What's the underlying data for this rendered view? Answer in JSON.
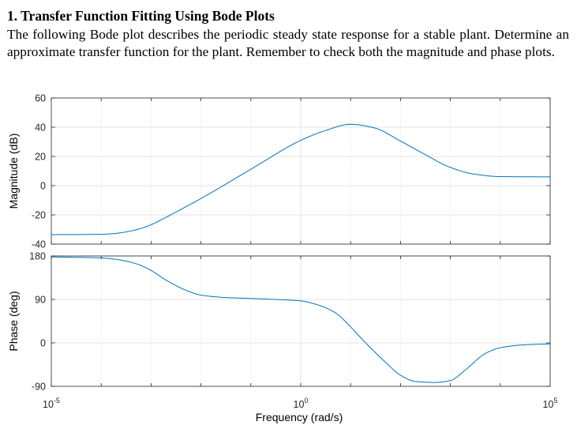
{
  "problem": {
    "heading": "1.  Transfer Function Fitting Using Bode Plots",
    "body": "The following Bode plot describes the periodic steady state response for a stable plant. Determine an approximate transfer function for the plant. Remember to check both the magnitude and phase plots."
  },
  "colors": {
    "line": "#0072BD",
    "axes": "#262626",
    "grid": "#e3e3e3",
    "tick_text": "#262626"
  },
  "chart_data": [
    {
      "type": "line",
      "title": "",
      "xlabel": "",
      "ylabel": "Magnitude (dB)",
      "xscale": "log",
      "xlim": [
        1e-05,
        100000
      ],
      "ylim": [
        -40,
        60
      ],
      "yticks": [
        "-40",
        "-20",
        "0",
        "20",
        "40",
        "60"
      ],
      "grid": true,
      "series": [
        {
          "x": [
            1e-05,
            0.0001,
            0.0002,
            0.0005,
            0.001,
            0.002,
            0.005,
            0.01,
            0.1,
            1,
            3,
            10,
            30,
            100,
            300,
            1000,
            3000,
            10000,
            100000
          ],
          "values": [
            -33.5,
            -33.3,
            -32.6,
            -30.2,
            -26.7,
            -21.6,
            -14.4,
            -8.8,
            11.2,
            31.0,
            37.5,
            42.0,
            39.5,
            30.5,
            21.6,
            12.5,
            7.9,
            6.2,
            6.0
          ]
        }
      ]
    },
    {
      "type": "line",
      "title": "",
      "xlabel": "Frequency  (rad/s)",
      "ylabel": "Phase (deg)",
      "xscale": "log",
      "xlim": [
        1e-05,
        100000
      ],
      "ylim": [
        -90,
        180
      ],
      "xticks": [
        {
          "base": "10",
          "exp": "-5"
        },
        {
          "base": "10",
          "exp": "0"
        },
        {
          "base": "10",
          "exp": "5"
        }
      ],
      "yticks": [
        "-90",
        "0",
        "90",
        "180"
      ],
      "grid": true,
      "series": [
        {
          "x": [
            1e-05,
            0.0001,
            0.0002,
            0.0005,
            0.001,
            0.002,
            0.005,
            0.01,
            0.03,
            0.1,
            0.3,
            1,
            2,
            5,
            10,
            20,
            50,
            100,
            200,
            500,
            1000,
            2000,
            5000,
            10000,
            30000,
            100000
          ],
          "values": [
            178,
            176,
            173,
            164,
            150,
            130,
            109,
            99,
            94,
            92,
            90,
            87,
            80,
            62,
            33,
            0,
            -40,
            -67,
            -80,
            -82,
            -78,
            -56,
            -22,
            -10,
            -4,
            -2
          ]
        }
      ]
    }
  ]
}
